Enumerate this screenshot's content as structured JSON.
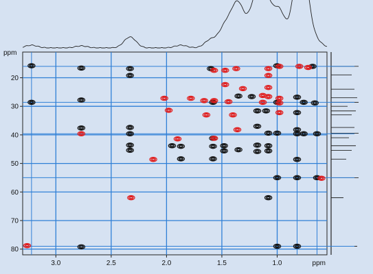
{
  "chart_data": {
    "type": "scatter",
    "title": "",
    "x_unit": "ppm",
    "y_unit": "ppm",
    "x_axis": {
      "range": [
        3.3,
        0.55
      ],
      "ticks": [
        "3.0",
        "2.5",
        "2.0",
        "1.5",
        "1.0"
      ],
      "reversed": true
    },
    "y_axis": {
      "range": [
        11,
        82
      ],
      "ticks": [
        "20",
        "30",
        "40",
        "50",
        "60",
        "70",
        "80"
      ],
      "reversed": true
    },
    "grid": true,
    "colors": {
      "background": "#d6e2f2",
      "grid": "#2f7fd6",
      "positive": "#111111",
      "negative": "#e11b1b",
      "trace": "#222222"
    },
    "series": [
      {
        "name": "",
        "sign": "positive",
        "color": "#111111",
        "points": [
          [
            3.22,
            15.8
          ],
          [
            3.22,
            28.6
          ],
          [
            2.77,
            16.6
          ],
          [
            2.77,
            27.8
          ],
          [
            2.77,
            37.6
          ],
          [
            2.77,
            79.2
          ],
          [
            2.33,
            16.8
          ],
          [
            2.33,
            19.2
          ],
          [
            2.33,
            37.4
          ],
          [
            2.33,
            39.6
          ],
          [
            2.33,
            43.6
          ],
          [
            2.33,
            45.4
          ],
          [
            1.95,
            43.8
          ],
          [
            1.87,
            44.0
          ],
          [
            1.87,
            48.4
          ],
          [
            1.6,
            16.8
          ],
          [
            1.58,
            28.6
          ],
          [
            1.58,
            41.2
          ],
          [
            1.58,
            44.0
          ],
          [
            1.58,
            48.4
          ],
          [
            1.48,
            43.8
          ],
          [
            1.48,
            45.6
          ],
          [
            1.35,
            26.4
          ],
          [
            1.35,
            45.2
          ],
          [
            1.23,
            26.6
          ],
          [
            1.18,
            31.6
          ],
          [
            1.18,
            37.0
          ],
          [
            1.18,
            43.6
          ],
          [
            1.18,
            45.8
          ],
          [
            1.1,
            31.6
          ],
          [
            1.08,
            39.4
          ],
          [
            1.08,
            43.8
          ],
          [
            1.08,
            45.6
          ],
          [
            1.08,
            62.0
          ],
          [
            1.0,
            15.8
          ],
          [
            1.0,
            28.6
          ],
          [
            1.0,
            39.4
          ],
          [
            1.0,
            55.0
          ],
          [
            1.0,
            79.0
          ],
          [
            0.82,
            26.8
          ],
          [
            0.82,
            32.2
          ],
          [
            0.82,
            38.2
          ],
          [
            0.82,
            39.6
          ],
          [
            0.82,
            48.6
          ],
          [
            0.82,
            55.0
          ],
          [
            0.82,
            79.0
          ],
          [
            0.76,
            28.6
          ],
          [
            0.76,
            39.6
          ],
          [
            0.68,
            16.0
          ],
          [
            0.66,
            28.8
          ],
          [
            0.64,
            39.6
          ],
          [
            0.64,
            55.0
          ]
        ]
      },
      {
        "name": "",
        "sign": "negative",
        "color": "#e11b1b",
        "points": [
          [
            3.26,
            78.8
          ],
          [
            2.77,
            39.6
          ],
          [
            2.32,
            62.0
          ],
          [
            2.12,
            48.6
          ],
          [
            2.02,
            27.2
          ],
          [
            1.98,
            31.4
          ],
          [
            1.9,
            41.4
          ],
          [
            1.78,
            27.2
          ],
          [
            1.66,
            28.0
          ],
          [
            1.64,
            33.0
          ],
          [
            1.57,
            17.4
          ],
          [
            1.57,
            28.0
          ],
          [
            1.57,
            41.2
          ],
          [
            1.47,
            17.4
          ],
          [
            1.47,
            22.4
          ],
          [
            1.44,
            28.4
          ],
          [
            1.4,
            33.0
          ],
          [
            1.36,
            38.2
          ],
          [
            1.37,
            16.8
          ],
          [
            1.31,
            23.8
          ],
          [
            1.13,
            28.6
          ],
          [
            1.13,
            26.2
          ],
          [
            1.08,
            16.8
          ],
          [
            1.08,
            19.2
          ],
          [
            1.08,
            23.4
          ],
          [
            1.08,
            26.6
          ],
          [
            0.98,
            27.2
          ],
          [
            0.98,
            28.8
          ],
          [
            0.98,
            32.2
          ],
          [
            0.98,
            16.0
          ],
          [
            0.8,
            16.0
          ],
          [
            0.72,
            16.4
          ],
          [
            0.6,
            55.2
          ]
        ]
      }
    ],
    "projection_peaks_1h": [
      3.22,
      2.77,
      2.33,
      1.87,
      1.6,
      1.47,
      1.37,
      1.33,
      1.21,
      1.14,
      1.1,
      1.08,
      0.98,
      0.82,
      0.79,
      0.75,
      0.64
    ],
    "projection_peaks_13c": [
      16,
      19,
      24,
      27,
      28.6,
      30,
      31.6,
      33,
      37.4,
      39.4,
      41,
      43.8,
      45.4,
      48.5,
      55,
      62,
      79
    ]
  }
}
